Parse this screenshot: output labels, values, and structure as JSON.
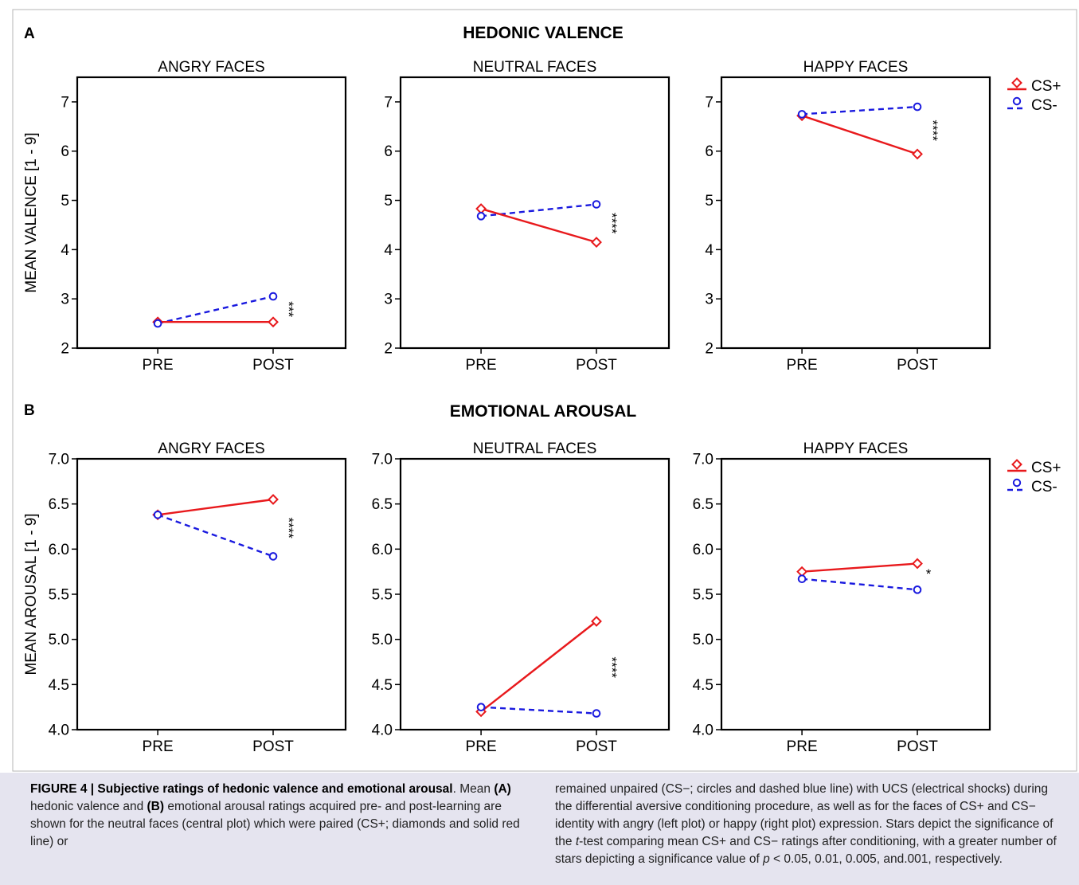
{
  "figure": {
    "panels": [
      {
        "letter": "A",
        "title": "HEDONIC VALENCE"
      },
      {
        "letter": "B",
        "title": "EMOTIONAL AROUSAL"
      }
    ],
    "legend": {
      "cs_plus": "CS+",
      "cs_minus": "CS-"
    },
    "colors": {
      "cs_plus": "#e8191c",
      "cs_minus": "#1a1adf"
    }
  },
  "chart_data": [
    {
      "type": "line",
      "panel": "A",
      "title": "ANGRY FACES",
      "ylabel": "MEAN VALENCE [1 - 9]",
      "categories": [
        "PRE",
        "POST"
      ],
      "ylim": [
        2,
        7.5
      ],
      "yticks": [
        "2",
        "3",
        "4",
        "5",
        "6",
        "7"
      ],
      "series": [
        {
          "name": "CS+",
          "values": [
            2.53,
            2.53
          ]
        },
        {
          "name": "CS-",
          "values": [
            2.5,
            3.05
          ]
        }
      ],
      "significance": "***",
      "grid": false,
      "legend": false
    },
    {
      "type": "line",
      "panel": "A",
      "title": "NEUTRAL FACES",
      "ylabel": "",
      "categories": [
        "PRE",
        "POST"
      ],
      "ylim": [
        2,
        7.5
      ],
      "yticks": [
        "2",
        "3",
        "4",
        "5",
        "6",
        "7"
      ],
      "series": [
        {
          "name": "CS+",
          "values": [
            4.83,
            4.15
          ]
        },
        {
          "name": "CS-",
          "values": [
            4.68,
            4.92
          ]
        }
      ],
      "significance": "****",
      "grid": false,
      "legend": false
    },
    {
      "type": "line",
      "panel": "A",
      "title": "HAPPY FACES",
      "ylabel": "",
      "categories": [
        "PRE",
        "POST"
      ],
      "ylim": [
        2,
        7.5
      ],
      "yticks": [
        "2",
        "3",
        "4",
        "5",
        "6",
        "7"
      ],
      "series": [
        {
          "name": "CS+",
          "values": [
            6.72,
            5.94
          ]
        },
        {
          "name": "CS-",
          "values": [
            6.75,
            6.9
          ]
        }
      ],
      "significance": "****",
      "grid": false,
      "legend": "right"
    },
    {
      "type": "line",
      "panel": "B",
      "title": "ANGRY FACES",
      "ylabel": "MEAN AROUSAL [1 - 9]",
      "categories": [
        "PRE",
        "POST"
      ],
      "ylim": [
        4,
        7
      ],
      "yticks": [
        "4.0",
        "4.5",
        "5.0",
        "5.5",
        "6.0",
        "6.5",
        "7.0"
      ],
      "series": [
        {
          "name": "CS+",
          "values": [
            6.38,
            6.55
          ]
        },
        {
          "name": "CS-",
          "values": [
            6.38,
            5.92
          ]
        }
      ],
      "significance": "****",
      "grid": false,
      "legend": false
    },
    {
      "type": "line",
      "panel": "B",
      "title": "NEUTRAL FACES",
      "ylabel": "",
      "categories": [
        "PRE",
        "POST"
      ],
      "ylim": [
        4,
        7
      ],
      "yticks": [
        "4.0",
        "4.5",
        "5.0",
        "5.5",
        "6.0",
        "6.5",
        "7.0"
      ],
      "series": [
        {
          "name": "CS+",
          "values": [
            4.2,
            5.2
          ]
        },
        {
          "name": "CS-",
          "values": [
            4.25,
            4.18
          ]
        }
      ],
      "significance": "****",
      "grid": false,
      "legend": false
    },
    {
      "type": "line",
      "panel": "B",
      "title": "HAPPY FACES",
      "ylabel": "",
      "categories": [
        "PRE",
        "POST"
      ],
      "ylim": [
        4,
        7
      ],
      "yticks": [
        "4.0",
        "4.5",
        "5.0",
        "5.5",
        "6.0",
        "6.5",
        "7.0"
      ],
      "series": [
        {
          "name": "CS+",
          "values": [
            5.75,
            5.84
          ]
        },
        {
          "name": "CS-",
          "values": [
            5.67,
            5.55
          ]
        }
      ],
      "significance": "*",
      "grid": false,
      "legend": "right"
    }
  ],
  "caption": {
    "title": "FIGURE 4 | Subjective ratings of hedonic valence and emotional arousal",
    "t1": ". Mean ",
    "b1": "(A)",
    "t2": " hedonic valence and ",
    "b2": "(B)",
    "t3": " emotional arousal ratings acquired pre- and post-learning are shown for the neutral faces (central plot) which were paired (CS+; diamonds and solid red line) or remained unpaired (CS−; circles and dashed blue line) with UCS (electrical shocks) during the differential aversive conditioning procedure, as well as for the faces of CS+ and CS− identity with angry (left plot) or happy (right plot) expression. Stars depict the significance of the ",
    "i1": "t",
    "t4": "-test comparing mean CS+ and CS− ratings after conditioning, with a greater number of stars depicting a significance value of ",
    "i2": "p",
    "t5": " < 0.05, 0.01, 0.005, and.001, respectively."
  }
}
